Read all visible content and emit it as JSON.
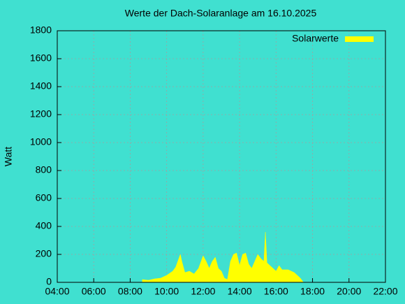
{
  "chart_data": {
    "type": "area",
    "title": "Werte der Dach-Solaranlage am 16.10.2025",
    "y_label": "Watt",
    "x": [
      "08:40",
      "09:00",
      "09:20",
      "09:40",
      "10:00",
      "10:20",
      "10:30",
      "10:45",
      "10:50",
      "11:00",
      "11:15",
      "11:30",
      "11:45",
      "12:00",
      "12:10",
      "12:20",
      "12:30",
      "12:40",
      "12:50",
      "13:00",
      "13:10",
      "13:20",
      "13:30",
      "13:40",
      "13:50",
      "14:00",
      "14:10",
      "14:20",
      "14:30",
      "14:40",
      "14:50",
      "15:00",
      "15:10",
      "15:20",
      "15:25",
      "15:30",
      "15:50",
      "16:00",
      "16:10",
      "16:20",
      "16:40",
      "17:00",
      "17:20",
      "17:30"
    ],
    "series": [
      {
        "name": "Solarwerte",
        "color": "#ffff00",
        "values": [
          20,
          15,
          25,
          30,
          50,
          80,
          110,
          200,
          150,
          70,
          80,
          60,
          100,
          190,
          150,
          100,
          150,
          180,
          100,
          80,
          30,
          20,
          150,
          200,
          210,
          120,
          200,
          210,
          130,
          100,
          150,
          200,
          170,
          150,
          360,
          140,
          100,
          80,
          120,
          90,
          90,
          70,
          30,
          0
        ]
      }
    ],
    "xlim": [
      "04:00",
      "22:00"
    ],
    "xticks": [
      "04:00",
      "06:00",
      "08:00",
      "10:00",
      "12:00",
      "14:00",
      "16:00",
      "18:00",
      "20:00",
      "22:00"
    ],
    "ylim": [
      0,
      1800
    ],
    "yticks": [
      0,
      200,
      400,
      600,
      800,
      1000,
      1200,
      1400,
      1600,
      1800
    ],
    "grid": true,
    "legend": "top-right"
  }
}
